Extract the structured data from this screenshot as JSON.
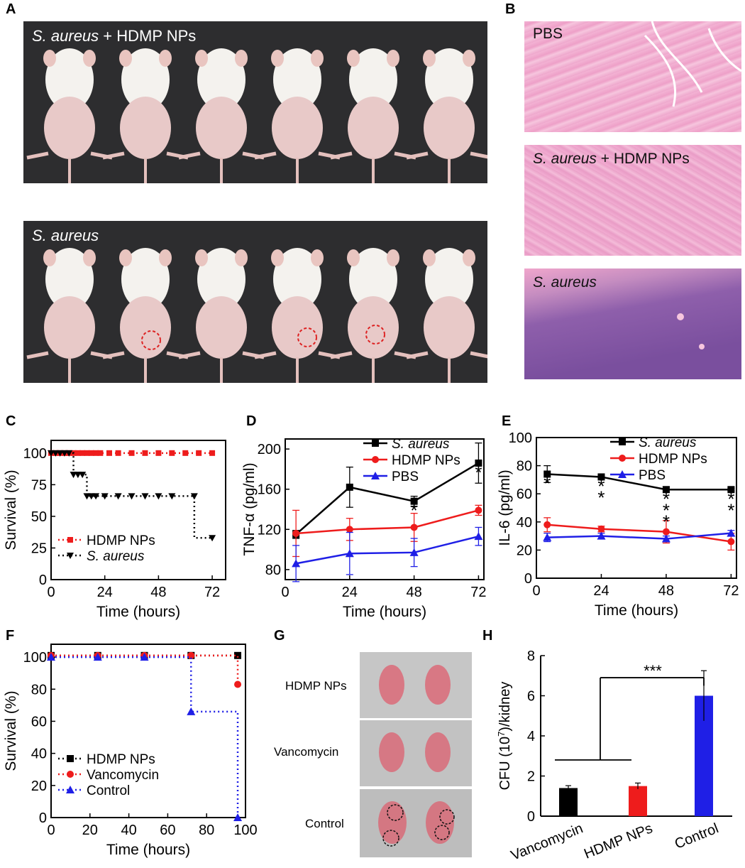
{
  "panels": {
    "A": {
      "letter": "A",
      "top_label_species": "S. aureus",
      "top_label_rest": " + HDMP NPs",
      "bottom_label": "S. aureus"
    },
    "B": {
      "letter": "B",
      "labels": [
        {
          "species": "",
          "rest": "PBS"
        },
        {
          "species": "S. aureus",
          "rest": " + HDMP NPs"
        },
        {
          "species": "S. aureus",
          "rest": ""
        }
      ]
    },
    "G": {
      "letter": "G",
      "rows": [
        "HDMP NPs",
        "Vancomycin",
        "Control"
      ]
    }
  },
  "colors": {
    "black_series": "#000000",
    "red_series": "#ee1c1c",
    "blue_series": "#1f1fe6",
    "photo_bg": "#2b2b2b",
    "he_pink": "#f0a6cc",
    "he_purple": "#8a5aa8",
    "kidney_bg": "#bfbfbf",
    "kidney": "#d97a85",
    "ring_red": "#dd2222"
  },
  "chart_data": [
    {
      "id": "C",
      "letter": "C",
      "type": "line",
      "xlabel": "Time (hours)",
      "ylabel": "Survival (%)",
      "xlim": [
        0,
        78
      ],
      "ylim": [
        0,
        110
      ],
      "xticks": [
        0,
        24,
        48,
        72
      ],
      "yticks": [
        0,
        25,
        50,
        75,
        100
      ],
      "step": true,
      "series": [
        {
          "name": "HDMP NPs",
          "color": "#ee1c1c",
          "marker": "square",
          "x": [
            0,
            72
          ],
          "y": [
            100,
            100
          ],
          "markers_x": [
            0,
            2,
            4,
            6,
            8,
            10,
            12,
            14,
            16,
            18,
            20,
            22,
            26,
            30,
            36,
            42,
            48,
            54,
            60,
            66,
            72
          ],
          "markers_y": [
            100,
            100,
            100,
            100,
            100,
            100,
            100,
            100,
            100,
            100,
            100,
            100,
            100,
            100,
            100,
            100,
            100,
            100,
            100,
            100,
            100
          ]
        },
        {
          "name": "S. aureus",
          "italic": true,
          "color": "#000000",
          "marker": "triangle-down",
          "x": [
            0,
            10,
            10,
            16,
            16,
            64,
            64,
            72
          ],
          "y": [
            100,
            100,
            83,
            83,
            66,
            66,
            33,
            33
          ],
          "markers_x": [
            0,
            2,
            4,
            6,
            8,
            10,
            12,
            14,
            16,
            18,
            20,
            24,
            30,
            36,
            42,
            48,
            54,
            64,
            72
          ],
          "markers_y": [
            100,
            100,
            100,
            100,
            100,
            83,
            83,
            83,
            66,
            66,
            66,
            66,
            66,
            66,
            66,
            66,
            66,
            66,
            33
          ]
        }
      ],
      "legend_order": [
        "HDMP NPs",
        "S. aureus"
      ],
      "legend": "bottom-left"
    },
    {
      "id": "D",
      "letter": "D",
      "type": "line",
      "xlabel": "Time (hours)",
      "ylabel": "TNF-α (pg/ml)",
      "xlim": [
        0,
        74
      ],
      "ylim": [
        70,
        210
      ],
      "xticks": [
        0,
        24,
        48,
        72
      ],
      "yticks": [
        80,
        120,
        160,
        200
      ],
      "series": [
        {
          "name": "S. aureus",
          "italic": true,
          "color": "#000000",
          "marker": "square",
          "x": [
            4,
            24,
            48,
            72
          ],
          "y": [
            115,
            162,
            148,
            186
          ],
          "err": [
            4,
            20,
            5,
            20
          ]
        },
        {
          "name": "HDMP NPs",
          "color": "#ee1c1c",
          "marker": "circle",
          "x": [
            4,
            24,
            48,
            72
          ],
          "y": [
            116,
            120,
            122,
            139
          ],
          "err": [
            23,
            11,
            14,
            5
          ]
        },
        {
          "name": "PBS",
          "color": "#1f1fe6",
          "marker": "triangle-up",
          "x": [
            4,
            24,
            48,
            72
          ],
          "y": [
            86,
            96,
            97,
            113
          ],
          "err": [
            18,
            21,
            14,
            9
          ]
        }
      ],
      "annotations": [
        {
          "x": 48,
          "text": "*"
        },
        {
          "x": 72,
          "text": "*"
        }
      ],
      "legend": "top-right"
    },
    {
      "id": "E",
      "letter": "E",
      "type": "line",
      "xlabel": "Time (hours)",
      "ylabel": "IL-6 (pg/ml)",
      "xlim": [
        0,
        74
      ],
      "ylim": [
        0,
        100
      ],
      "xticks": [
        0,
        24,
        48,
        72
      ],
      "yticks": [
        0,
        20,
        40,
        60,
        80,
        100
      ],
      "series": [
        {
          "name": "S. aureus",
          "italic": true,
          "color": "#000000",
          "marker": "square",
          "x": [
            4,
            24,
            48,
            72
          ],
          "y": [
            74,
            72,
            63,
            63
          ],
          "err": [
            6,
            1,
            2,
            1
          ]
        },
        {
          "name": "HDMP NPs",
          "color": "#ee1c1c",
          "marker": "circle",
          "x": [
            4,
            24,
            48,
            72
          ],
          "y": [
            38,
            35,
            33,
            26
          ],
          "err": [
            5,
            2,
            8,
            6
          ]
        },
        {
          "name": "PBS",
          "color": "#1f1fe6",
          "marker": "triangle-up",
          "x": [
            4,
            24,
            48,
            72
          ],
          "y": [
            29,
            30,
            28,
            32
          ],
          "err": [
            3,
            2,
            2,
            2
          ]
        }
      ],
      "annotations": [
        {
          "x": 4,
          "text": "*"
        },
        {
          "x": 24,
          "text": "**"
        },
        {
          "x": 48,
          "text": "***"
        },
        {
          "x": 72,
          "text": "**"
        }
      ],
      "legend": "top-right"
    },
    {
      "id": "F",
      "letter": "F",
      "type": "line",
      "xlabel": "Time (hours)",
      "ylabel": "Survival (%)",
      "xlim": [
        0,
        100
      ],
      "ylim": [
        0,
        108
      ],
      "xticks": [
        0,
        20,
        40,
        60,
        80,
        100
      ],
      "yticks": [
        0,
        20,
        40,
        60,
        80,
        100
      ],
      "step": true,
      "series": [
        {
          "name": "HDMP NPs",
          "color": "#000000",
          "marker": "square",
          "x": [
            0,
            96
          ],
          "y": [
            101,
            101
          ],
          "markers_x": [
            0,
            24,
            48,
            72,
            96
          ],
          "markers_y": [
            101,
            101,
            101,
            101,
            101
          ]
        },
        {
          "name": "Vancomycin",
          "color": "#ee1c1c",
          "marker": "circle",
          "x": [
            0,
            96,
            96
          ],
          "y": [
            101,
            101,
            83
          ],
          "markers_x": [
            0,
            24,
            48,
            72,
            96
          ],
          "markers_y": [
            101,
            101,
            101,
            101,
            83
          ]
        },
        {
          "name": "Control",
          "color": "#1f1fe6",
          "marker": "triangle-up",
          "x": [
            0,
            72,
            72,
            96,
            96
          ],
          "y": [
            100,
            100,
            66,
            66,
            0
          ],
          "markers_x": [
            0,
            24,
            48,
            72,
            96
          ],
          "markers_y": [
            100,
            100,
            100,
            66,
            0
          ]
        }
      ],
      "legend": "bottom-left"
    },
    {
      "id": "H",
      "letter": "H",
      "type": "bar",
      "categories": [
        "Vancomycin",
        "HDMP NPs",
        "Control"
      ],
      "values": [
        1.4,
        1.5,
        6.0
      ],
      "err": [
        0.12,
        0.15,
        1.25
      ],
      "colors": [
        "#000000",
        "#ee1c1c",
        "#1f1fe6"
      ],
      "ylabel_pre": "CFU (10",
      "ylabel_sup": "7",
      "ylabel_post": ")/kidney",
      "ylim": [
        0,
        8
      ],
      "yticks": [
        0,
        2,
        4,
        6,
        8
      ],
      "significance": "***"
    }
  ]
}
